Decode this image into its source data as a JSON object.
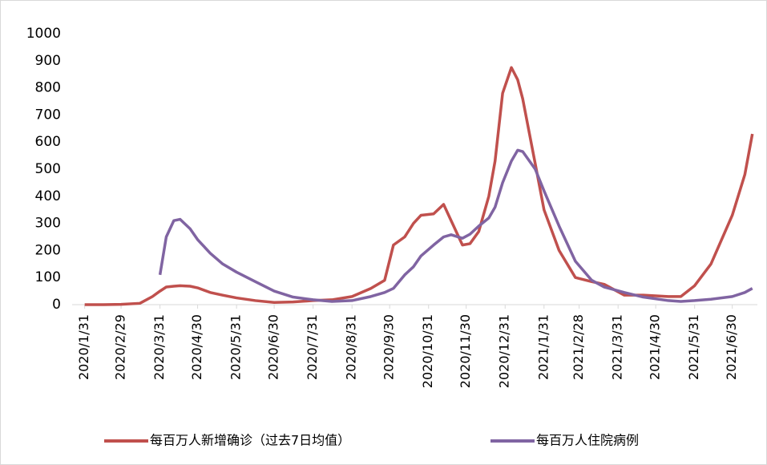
{
  "chart_data": {
    "type": "line",
    "x": [
      "2020/1/31",
      "2020/2/15",
      "2020/2/29",
      "2020/3/15",
      "2020/3/25",
      "2020/3/31",
      "2020/4/5",
      "2020/4/11",
      "2020/4/16",
      "2020/4/24",
      "2020/4/30",
      "2020/5/10",
      "2020/5/20",
      "2020/5/31",
      "2020/6/15",
      "2020/6/30",
      "2020/7/15",
      "2020/7/31",
      "2020/8/15",
      "2020/8/31",
      "2020/9/15",
      "2020/9/26",
      "2020/10/3",
      "2020/10/12",
      "2020/10/19",
      "2020/10/25",
      "2020/11/4",
      "2020/11/12",
      "2020/11/18",
      "2020/11/27",
      "2020/12/3",
      "2020/12/10",
      "2020/12/18",
      "2020/12/23",
      "2020/12/29",
      "2021/1/5",
      "2021/1/10",
      "2021/1/14",
      "2021/1/24",
      "2021/1/31",
      "2021/2/12",
      "2021/2/25",
      "2021/3/10",
      "2021/3/20",
      "2021/4/5",
      "2021/4/20",
      "2021/5/10",
      "2021/5/20",
      "2021/5/31",
      "2021/6/13",
      "2021/6/30",
      "2021/7/10",
      "2021/7/16"
    ],
    "series": [
      {
        "name": "每百万人新增确诊（过去7日均值）",
        "color": "#c0504d",
        "values": [
          0,
          0,
          1,
          5,
          30,
          50,
          65,
          68,
          70,
          68,
          62,
          45,
          35,
          25,
          15,
          8,
          10,
          15,
          18,
          30,
          60,
          90,
          220,
          250,
          300,
          330,
          335,
          370,
          310,
          220,
          225,
          270,
          400,
          530,
          780,
          875,
          830,
          760,
          520,
          350,
          200,
          100,
          85,
          75,
          35,
          35,
          30,
          30,
          70,
          150,
          330,
          480,
          630
        ]
      },
      {
        "name": "每百万人住院病例",
        "color": "#8064a2",
        "values": [
          null,
          null,
          null,
          null,
          null,
          110,
          250,
          310,
          315,
          280,
          240,
          190,
          150,
          120,
          85,
          50,
          28,
          18,
          12,
          15,
          30,
          45,
          60,
          110,
          140,
          180,
          220,
          250,
          258,
          245,
          260,
          290,
          320,
          360,
          450,
          530,
          570,
          565,
          500,
          420,
          290,
          160,
          90,
          65,
          45,
          28,
          15,
          12,
          15,
          20,
          30,
          45,
          60
        ]
      }
    ],
    "xlim": [
      "2020/1/21",
      "2021/7/20"
    ],
    "xticks": [
      "2020/1/31",
      "2020/2/29",
      "2020/3/31",
      "2020/4/30",
      "2020/5/31",
      "2020/6/30",
      "2020/7/31",
      "2020/8/31",
      "2020/9/30",
      "2020/10/31",
      "2020/11/30",
      "2020/12/31",
      "2021/1/31",
      "2021/2/28",
      "2021/3/31",
      "2021/4/30",
      "2021/5/31",
      "2021/6/30"
    ],
    "ylim": [
      0,
      1000
    ],
    "yticks": [
      0,
      100,
      200,
      300,
      400,
      500,
      600,
      700,
      800,
      900,
      1000
    ],
    "grid": false,
    "legend": "bottom"
  }
}
